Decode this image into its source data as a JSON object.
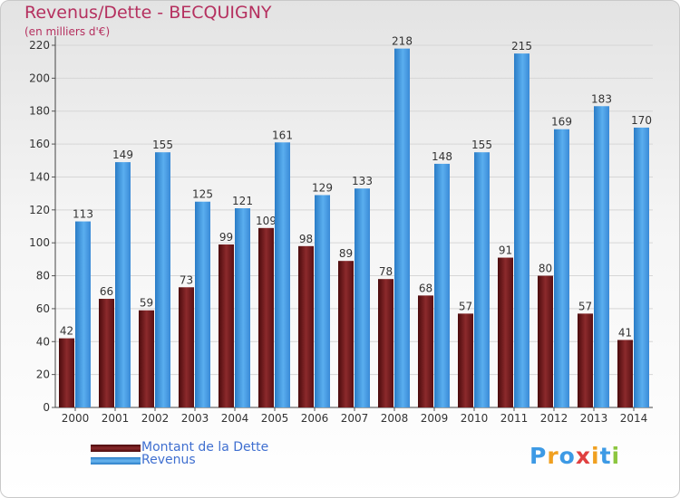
{
  "chart_data": {
    "type": "bar",
    "title": "Revenus/Dette - BECQUIGNY",
    "subtitle": "(en milliers d'€)",
    "categories": [
      "2000",
      "2001",
      "2002",
      "2003",
      "2004",
      "2005",
      "2006",
      "2007",
      "2008",
      "2009",
      "2010",
      "2011",
      "2012",
      "2013",
      "2014"
    ],
    "series": [
      {
        "name": "Montant de la Dette",
        "color": "#7a1416",
        "values": [
          42,
          66,
          59,
          73,
          99,
          109,
          98,
          89,
          78,
          68,
          57,
          91,
          80,
          57,
          41
        ]
      },
      {
        "name": "Revenus",
        "color": "#3d9ae5",
        "values": [
          113,
          149,
          155,
          125,
          121,
          161,
          129,
          133,
          218,
          148,
          155,
          215,
          169,
          183,
          170
        ]
      }
    ],
    "ylim": [
      0,
      220
    ],
    "yticks": [
      0,
      20,
      40,
      60,
      80,
      100,
      120,
      140,
      160,
      180,
      200,
      220
    ],
    "grid": true,
    "legend_position": "bottom-left"
  },
  "legend": {
    "items": [
      {
        "label": "Montant de la Dette",
        "color": "#7a1416"
      },
      {
        "label": "Revenus",
        "color": "#3d9ae5"
      }
    ]
  },
  "logo": {
    "text": "Proxiti",
    "letters": [
      "P",
      "r",
      "o",
      "x",
      "i",
      "t",
      "i"
    ],
    "colors": [
      "#3d9ae5",
      "#f0a020",
      "#3d9ae5",
      "#e04040",
      "#f0a020",
      "#3d9ae5",
      "#8cc63f"
    ]
  }
}
